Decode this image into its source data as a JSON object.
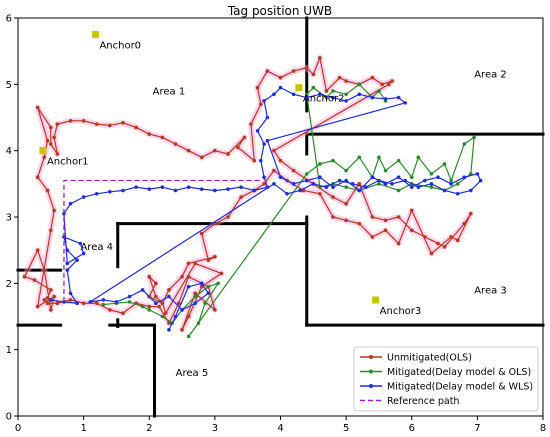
{
  "chart_data": {
    "type": "line",
    "title": "Tag position UWB",
    "xlabel": "",
    "ylabel": "",
    "xlim": [
      0,
      8
    ],
    "ylim": [
      0,
      6
    ],
    "xticks": [
      "0",
      "1",
      "2",
      "3",
      "4",
      "5",
      "6",
      "7",
      "8"
    ],
    "yticks": [
      "0",
      "1",
      "2",
      "3",
      "4",
      "5",
      "6"
    ],
    "grid": false,
    "legend_position": "bottom-right",
    "walls": [
      [
        [
          4.4,
          6.0
        ],
        [
          4.4,
          4.6
        ]
      ],
      [
        [
          4.4,
          4.25
        ],
        [
          8.0,
          4.25
        ]
      ],
      [
        [
          4.4,
          4.25
        ],
        [
          4.4,
          3.95
        ]
      ],
      [
        [
          4.4,
          3.0
        ],
        [
          4.4,
          1.37
        ]
      ],
      [
        [
          4.4,
          1.37
        ],
        [
          8.0,
          1.37
        ]
      ],
      [
        [
          1.52,
          2.9
        ],
        [
          4.4,
          2.9
        ]
      ],
      [
        [
          1.52,
          2.9
        ],
        [
          1.52,
          2.25
        ]
      ],
      [
        [
          1.52,
          1.45
        ],
        [
          1.52,
          1.35
        ]
      ],
      [
        [
          1.4,
          1.37
        ],
        [
          2.05,
          1.37
        ]
      ],
      [
        [
          2.08,
          1.37
        ],
        [
          2.08,
          0.0
        ]
      ],
      [
        [
          0.0,
          1.37
        ],
        [
          0.65,
          1.37
        ]
      ],
      [
        [
          0.0,
          2.2
        ],
        [
          0.65,
          2.2
        ]
      ]
    ],
    "anchors": [
      {
        "name": "Anchor0",
        "x": 1.18,
        "y": 5.75
      },
      {
        "name": "Anchor1",
        "x": 0.38,
        "y": 4.0
      },
      {
        "name": "Anchor2",
        "x": 4.28,
        "y": 4.95
      },
      {
        "name": "Anchor3",
        "x": 5.45,
        "y": 1.75
      }
    ],
    "area_labels": [
      {
        "text": "Area 1",
        "x": 2.3,
        "y": 4.85
      },
      {
        "text": "Area 2",
        "x": 7.2,
        "y": 5.1
      },
      {
        "text": "Area 3",
        "x": 7.2,
        "y": 1.85
      },
      {
        "text": "Area 4",
        "x": 1.2,
        "y": 2.5
      },
      {
        "text": "Area 5",
        "x": 2.65,
        "y": 0.6
      }
    ],
    "series": [
      {
        "name": "Unmitigated(OLS)",
        "color": "#b5391d",
        "points": [
          [
            0.4,
            1.75
          ],
          [
            0.45,
            1.78
          ],
          [
            0.5,
            1.9
          ],
          [
            0.25,
            2.05
          ],
          [
            0.1,
            2.1
          ],
          [
            0.3,
            2.5
          ],
          [
            0.4,
            2.2
          ],
          [
            0.5,
            1.6
          ],
          [
            0.55,
            1.8
          ],
          [
            0.3,
            1.65
          ],
          [
            0.5,
            2.8
          ],
          [
            0.55,
            3.1
          ],
          [
            0.45,
            3.4
          ],
          [
            0.3,
            3.6
          ],
          [
            0.4,
            3.9
          ],
          [
            0.45,
            4.15
          ],
          [
            0.3,
            4.65
          ],
          [
            0.5,
            4.35
          ],
          [
            0.5,
            4.1
          ],
          [
            0.6,
            3.95
          ],
          [
            0.55,
            4.2
          ],
          [
            0.6,
            4.4
          ],
          [
            0.8,
            4.45
          ],
          [
            1.0,
            4.45
          ],
          [
            1.2,
            4.4
          ],
          [
            1.4,
            4.38
          ],
          [
            1.6,
            4.42
          ],
          [
            1.8,
            4.35
          ],
          [
            2.0,
            4.25
          ],
          [
            2.2,
            4.2
          ],
          [
            2.4,
            4.1
          ],
          [
            2.6,
            4.0
          ],
          [
            2.8,
            3.9
          ],
          [
            3.0,
            4.0
          ],
          [
            3.2,
            3.95
          ],
          [
            3.45,
            4.2
          ],
          [
            3.35,
            4.05
          ],
          [
            3.6,
            3.85
          ],
          [
            3.55,
            4.4
          ],
          [
            3.7,
            4.7
          ],
          [
            3.65,
            4.95
          ],
          [
            3.8,
            5.2
          ],
          [
            4.0,
            5.1
          ],
          [
            4.2,
            5.2
          ],
          [
            4.4,
            5.25
          ],
          [
            4.5,
            5.15
          ],
          [
            4.6,
            5.4
          ],
          [
            4.7,
            4.9
          ],
          [
            4.9,
            5.1
          ],
          [
            5.0,
            5.05
          ],
          [
            5.2,
            5.0
          ],
          [
            5.4,
            5.1
          ],
          [
            5.55,
            5.0
          ],
          [
            5.7,
            5.05
          ],
          [
            5.65,
            5.0
          ],
          [
            3.9,
            4.0
          ],
          [
            4.0,
            3.85
          ],
          [
            4.2,
            3.7
          ],
          [
            4.5,
            3.5
          ],
          [
            4.8,
            3.3
          ],
          [
            5.0,
            3.2
          ],
          [
            5.2,
            3.5
          ],
          [
            5.4,
            3.0
          ],
          [
            5.6,
            2.95
          ],
          [
            5.8,
            3.0
          ],
          [
            6.0,
            2.8
          ],
          [
            6.2,
            2.7
          ],
          [
            6.4,
            2.6
          ],
          [
            6.5,
            2.55
          ],
          [
            6.8,
            2.9
          ],
          [
            6.9,
            3.05
          ],
          [
            6.7,
            2.65
          ],
          [
            6.6,
            2.7
          ],
          [
            6.3,
            2.45
          ],
          [
            6.0,
            3.1
          ],
          [
            5.8,
            2.6
          ],
          [
            5.6,
            2.8
          ],
          [
            5.4,
            2.7
          ],
          [
            5.2,
            2.9
          ],
          [
            5.0,
            2.95
          ],
          [
            4.8,
            3.0
          ],
          [
            4.6,
            3.35
          ],
          [
            4.35,
            3.4
          ],
          [
            4.1,
            3.55
          ],
          [
            3.9,
            3.7
          ],
          [
            3.75,
            3.5
          ],
          [
            3.6,
            3.4
          ],
          [
            3.4,
            3.3
          ],
          [
            3.2,
            3.0
          ],
          [
            3.0,
            2.9
          ],
          [
            2.8,
            2.75
          ],
          [
            2.9,
            2.35
          ],
          [
            3.0,
            2.4
          ],
          [
            2.6,
            2.3
          ],
          [
            2.5,
            2.1
          ],
          [
            2.3,
            1.9
          ],
          [
            2.2,
            1.7
          ],
          [
            2.0,
            1.8
          ],
          [
            2.1,
            2.0
          ],
          [
            2.0,
            2.1
          ],
          [
            2.1,
            1.8
          ],
          [
            2.2,
            1.7
          ],
          [
            2.25,
            1.55
          ],
          [
            2.7,
            2.3
          ],
          [
            3.1,
            2.15
          ],
          [
            2.8,
            1.95
          ],
          [
            2.6,
            1.5
          ],
          [
            2.5,
            1.3
          ],
          [
            2.7,
            1.85
          ],
          [
            3.0,
            1.6
          ],
          [
            2.9,
            1.95
          ],
          [
            2.6,
            2.1
          ],
          [
            2.45,
            1.7
          ],
          [
            2.3,
            1.4
          ],
          [
            2.15,
            1.65
          ],
          [
            2.0,
            1.65
          ],
          [
            1.8,
            1.7
          ],
          [
            1.6,
            1.55
          ],
          [
            1.4,
            1.6
          ],
          [
            1.2,
            1.7
          ],
          [
            1.0,
            1.7
          ],
          [
            0.8,
            1.75
          ],
          [
            0.6,
            1.7
          ],
          [
            0.45,
            1.7
          ]
        ]
      },
      {
        "name": "Mitigated(Delay model & OLS)",
        "color": "#2a8a2a",
        "points": [
          [
            1.3,
            1.68
          ],
          [
            1.5,
            1.7
          ],
          [
            1.7,
            1.72
          ],
          [
            1.9,
            1.65
          ],
          [
            2.0,
            1.6
          ],
          [
            2.2,
            1.5
          ],
          [
            2.35,
            1.4
          ],
          [
            2.5,
            1.6
          ],
          [
            2.7,
            1.8
          ],
          [
            2.9,
            1.95
          ],
          [
            3.05,
            2.0
          ],
          [
            2.85,
            1.7
          ],
          [
            2.75,
            1.4
          ],
          [
            2.6,
            1.2
          ],
          [
            4.4,
            3.65
          ],
          [
            4.6,
            3.8
          ],
          [
            4.8,
            3.85
          ],
          [
            5.0,
            3.7
          ],
          [
            5.2,
            3.9
          ],
          [
            5.4,
            3.6
          ],
          [
            5.5,
            3.9
          ],
          [
            5.6,
            3.7
          ],
          [
            5.8,
            3.85
          ],
          [
            6.0,
            3.6
          ],
          [
            6.1,
            3.9
          ],
          [
            6.3,
            3.65
          ],
          [
            6.5,
            3.8
          ],
          [
            6.6,
            3.55
          ],
          [
            6.8,
            4.1
          ],
          [
            6.95,
            4.2
          ],
          [
            6.9,
            3.65
          ],
          [
            6.7,
            3.5
          ],
          [
            6.5,
            3.4
          ],
          [
            6.3,
            3.45
          ],
          [
            6.0,
            3.5
          ],
          [
            5.8,
            3.4
          ],
          [
            5.5,
            3.5
          ],
          [
            5.2,
            3.4
          ],
          [
            5.0,
            3.45
          ],
          [
            4.8,
            3.5
          ],
          [
            4.6,
            3.45
          ],
          [
            4.4,
            4.85
          ],
          [
            4.5,
            4.95
          ],
          [
            4.7,
            4.8
          ],
          [
            4.8,
            4.9
          ],
          [
            5.0,
            4.85
          ],
          [
            5.2,
            5.0
          ],
          [
            5.4,
            4.8
          ],
          [
            5.5,
            4.9
          ],
          [
            5.6,
            4.75
          ]
        ]
      },
      {
        "name": "Mitigated(Delay model & WLS)",
        "color": "#1f2fd6",
        "points": [
          [
            0.5,
            1.75
          ],
          [
            0.7,
            1.72
          ],
          [
            0.9,
            1.7
          ],
          [
            0.8,
            1.85
          ],
          [
            0.75,
            2.2
          ],
          [
            0.9,
            2.35
          ],
          [
            0.75,
            2.5
          ],
          [
            0.7,
            2.7
          ],
          [
            0.95,
            2.6
          ],
          [
            1.0,
            2.45
          ],
          [
            0.75,
            2.3
          ],
          [
            0.7,
            3.05
          ],
          [
            0.8,
            3.2
          ],
          [
            1.0,
            3.3
          ],
          [
            1.2,
            3.35
          ],
          [
            1.4,
            3.38
          ],
          [
            1.6,
            3.4
          ],
          [
            1.8,
            3.45
          ],
          [
            2.0,
            3.42
          ],
          [
            2.2,
            3.45
          ],
          [
            2.4,
            3.4
          ],
          [
            2.6,
            3.45
          ],
          [
            2.8,
            3.42
          ],
          [
            3.0,
            3.4
          ],
          [
            3.2,
            3.42
          ],
          [
            3.4,
            3.45
          ],
          [
            3.6,
            3.4
          ],
          [
            3.8,
            3.45
          ],
          [
            3.75,
            3.6
          ],
          [
            3.7,
            3.85
          ],
          [
            3.75,
            4.1
          ],
          [
            3.65,
            4.3
          ],
          [
            3.8,
            4.5
          ],
          [
            3.75,
            4.75
          ],
          [
            3.9,
            4.85
          ],
          [
            4.0,
            4.95
          ],
          [
            4.2,
            4.85
          ],
          [
            4.4,
            4.8
          ],
          [
            4.6,
            4.85
          ],
          [
            4.8,
            4.8
          ],
          [
            5.0,
            4.75
          ],
          [
            5.2,
            4.85
          ],
          [
            5.4,
            4.8
          ],
          [
            5.6,
            4.78
          ],
          [
            5.8,
            4.8
          ],
          [
            5.9,
            4.72
          ],
          [
            3.8,
            4.15
          ],
          [
            4.0,
            3.6
          ],
          [
            4.2,
            3.5
          ],
          [
            4.4,
            3.55
          ],
          [
            4.6,
            3.6
          ],
          [
            4.8,
            3.45
          ],
          [
            5.0,
            3.55
          ],
          [
            5.2,
            3.4
          ],
          [
            5.4,
            3.6
          ],
          [
            5.6,
            3.5
          ],
          [
            5.8,
            3.6
          ],
          [
            6.0,
            3.45
          ],
          [
            6.2,
            3.55
          ],
          [
            6.4,
            3.6
          ],
          [
            6.6,
            3.5
          ],
          [
            6.8,
            3.6
          ],
          [
            7.0,
            3.65
          ],
          [
            7.05,
            3.55
          ],
          [
            6.9,
            3.4
          ],
          [
            6.7,
            3.35
          ],
          [
            6.5,
            3.4
          ],
          [
            6.3,
            3.5
          ],
          [
            6.1,
            3.45
          ],
          [
            5.9,
            3.55
          ],
          [
            5.7,
            3.5
          ],
          [
            5.5,
            3.55
          ],
          [
            5.3,
            3.45
          ],
          [
            5.1,
            3.5
          ],
          [
            4.9,
            3.55
          ],
          [
            4.7,
            3.45
          ],
          [
            4.5,
            3.5
          ],
          [
            4.3,
            3.4
          ],
          [
            4.1,
            3.35
          ],
          [
            3.9,
            3.5
          ],
          [
            1.1,
            1.72
          ],
          [
            1.3,
            1.75
          ],
          [
            1.5,
            1.72
          ],
          [
            1.7,
            1.8
          ],
          [
            1.9,
            1.9
          ],
          [
            2.1,
            1.7
          ],
          [
            2.3,
            1.8
          ],
          [
            2.5,
            1.6
          ],
          [
            2.7,
            1.7
          ],
          [
            2.9,
            1.85
          ],
          [
            2.8,
            2.0
          ],
          [
            2.6,
            1.95
          ],
          [
            2.4,
            1.5
          ],
          [
            2.3,
            1.3
          ]
        ]
      },
      {
        "name": "Reference path",
        "color": "#a020c0",
        "points": [
          [
            0.7,
            1.72
          ],
          [
            0.7,
            3.55
          ],
          [
            3.7,
            3.55
          ]
        ],
        "dashed": true
      }
    ]
  }
}
